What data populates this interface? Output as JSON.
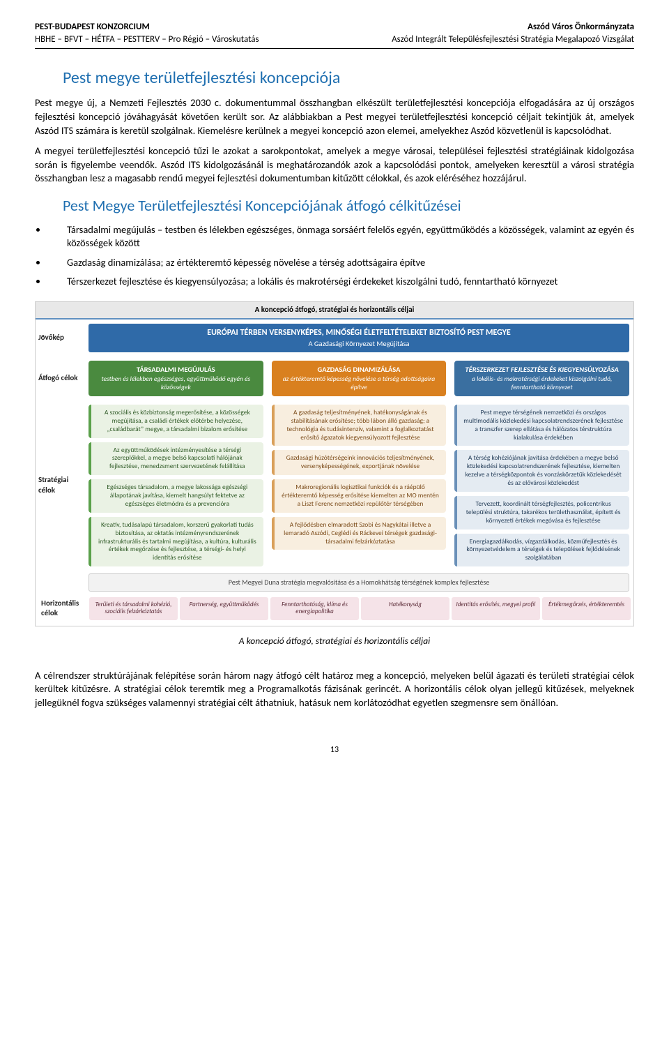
{
  "header": {
    "left_bold": "PEST-BUDAPEST KONZORCIUM",
    "right_bold": "Aszód Város Önkormányzata",
    "left_sub": "HBHE – BFVT – HÉTFA – PESTTERV – Pro Régió – Városkutatás",
    "right_sub": "Aszód Integrált Településfejlesztési Stratégia Megalapozó Vizsgálat"
  },
  "title1": "Pest megye területfejlesztési koncepciója",
  "para1": "Pest megye új, a Nemzeti Fejlesztés 2030 c. dokumentummal összhangban elkészült területfejlesztési koncepciója elfogadására az új országos fejlesztési koncepció jóváhagyását követően került sor. Az alábbiakban a Pest megyei területfejlesztési koncepció céljait tekintjük át, amelyek Aszód ITS számára is keretül szolgálnak. Kiemelésre kerülnek a megyei koncepció azon elemei, amelyekhez Aszód közvetlenül is kapcsolódhat.",
  "para2": "A megyei területfejlesztési koncepció tűzi le azokat a sarokpontokat, amelyek a megye városai, települései fejlesztési stratégiáinak kidolgozása során is figyelembe veendők. Aszód ITS kidolgozásánál is meghatározandók azok a kapcsolódási pontok, amelyeken keresztül a városi stratégia összhangban lesz a magasabb rendű megyei fejlesztési dokumentumban kitűzött célokkal, és azok eléréséhez hozzájárul.",
  "title2": "Pest Megye Területfejlesztési Koncepciójának átfogó célkitűzései",
  "bullets": [
    "Társadalmi megújulás – testben és lélekben egészséges, önmaga sorsáért felelős egyén, együttműködés a közösségek, valamint az egyén és közösségek között",
    "Gazdaság dinamizálása; az értékteremtő képesség növelése a térség adottságaira építve",
    "Térszerkezet fejlesztése és kiegyensúlyozása; a lokális és makrotérségi érdekeket kiszolgálni tudó, fenntartható környezet"
  ],
  "diagram": {
    "topbar": "A koncepció átfogó, stratégiai és horizontális céljai",
    "labels": {
      "jovokep": "Jövőkép",
      "atfogo": "Átfogó célok",
      "strategiai": "Stratégiai célok",
      "horizontalis": "Horizontális célok"
    },
    "vision": {
      "line1": "EURÓPAI TÉRBEN VERSENYKÉPES, MINŐSÉGI ÉLETFELTÉTELEKET BIZTOSÍTÓ PEST MEGYE",
      "line2": "A Gazdasági Környezet Megújítása"
    },
    "cols": {
      "green": {
        "head": "TÁRSADALMI MEGÚJULÁS",
        "head_sub": "testben és lélekben egészséges, együttműködő egyén és közösségek",
        "items": [
          "A szociális és közbiztonság megerősítése, a közösségek megújítása, a családi értékek előtérbe helyezése, „családbarát” megye, a társadalmi bizalom erősítése",
          "Az együttműködések intézményesítése a térségi szereplőkkel, a megye belső kapcsolati hálójának fejlesztése, menedzsment szervezetének felállítása",
          "Egészséges társadalom, a megye lakossága egészségi állapotának javítása, kiemelt hangsúlyt fektetve az egészséges életmódra és a prevencióra",
          "Kreatív, tudásalapú társadalom, korszerű gyakorlati tudás biztosítása, az oktatás intézményrendszerének infrastrukturális és tartalmi megújítása, a kultúra, kulturális értékek megőrzése és fejlesztése, a térségi- és helyi identitás erősítése"
        ]
      },
      "orange": {
        "head": "GAZDASÁG DINAMIZÁLÁSA",
        "head_sub": "az értékteremtő képesség növelése a térség adottságaira építve",
        "items": [
          "A gazdaság teljesítményének, hatékonyságának és stabilitásának erősítése; több lábon álló gazdaság; a technológia és tudásintenzív, valamint a foglalkoztatást erősítő ágazatok kiegyensúlyozott fejlesztése",
          "Gazdasági húzótérségeink innovációs teljesítményének, versenyképességének, exportjának növelése",
          "Makroregionális logisztikai funkciók és a ráépülő értékteremtő képesség erősítése kiemelten az MO mentén a Liszt Ferenc nemzetközi repülőtér térségében",
          "A fejlődésben elmaradott Szobi és Nagykátai illetve a lemaradó Aszódi, Ceglédi és Ráckevei térségek gazdasági-társadalmi felzárkóztatása"
        ]
      },
      "blue": {
        "head": "TÉRSZERKEZET FEJLESZTÉSE ÉS KIEGYENSÚLYOZÁSA",
        "head_sub": "a lokális- és makrotérségi érdekeket kiszolgálni tudó, fenntartható környezet",
        "items": [
          "Pest megye térségének nemzetközi és országos multimodális közlekedési kapcsolatrendszerének fejlesztése a transzfer szerep ellátása és hálózatos térstruktúra kialakulása érdekében",
          "A térség kohéziójának javítása érdekében a megye belső közlekedési kapcsolatrendszerének fejlesztése, kiemelten kezelve a térségközpontok és vonzáskörzetük közlekedését és az elővárosi közlekedést",
          "Tervezett, koordinált térségfejlesztés, policentrikus települési struktúra, takarékos területhasználat, épített és környezeti értékek megóvása és fejlesztése",
          "Energiagazdálkodás, vízgazdálkodás, közműfejlesztés és környezetvédelem a térségek és települések fejlődésének szolgálatában"
        ]
      }
    },
    "spanner": "Pest Megyei Duna stratégia megvalósítása és a Homokhátság térségének komplex fejlesztése",
    "horizont": [
      "Területi és társadalmi kohézió, szociális felzárkóztatás",
      "Partnerség, együttműködés",
      "Fenntarthatóság, klíma és energiapolitika",
      "Hatékonyság",
      "Identitás erősítés, megyei profil",
      "Értékmegőrzés, értékteremtés"
    ]
  },
  "caption": "A koncepció átfogó, stratégiai és horizontális céljai",
  "closing": "A célrendszer struktúrájának felépítése során három nagy átfogó célt határoz meg a koncepció, melyeken belül ágazati és területi stratégiai célok kerültek kitűzésre. A stratégiai célok teremtik meg a Programalkotás fázisának gerincét. A horizontális célok olyan jellegű kitűzések, melyeknek jellegüknél fogva szükséges valamennyi stratégiai célt áthatniuk, hatásuk nem korlátozódhat egyetlen szegmensre sem önállóan.",
  "page": "13"
}
